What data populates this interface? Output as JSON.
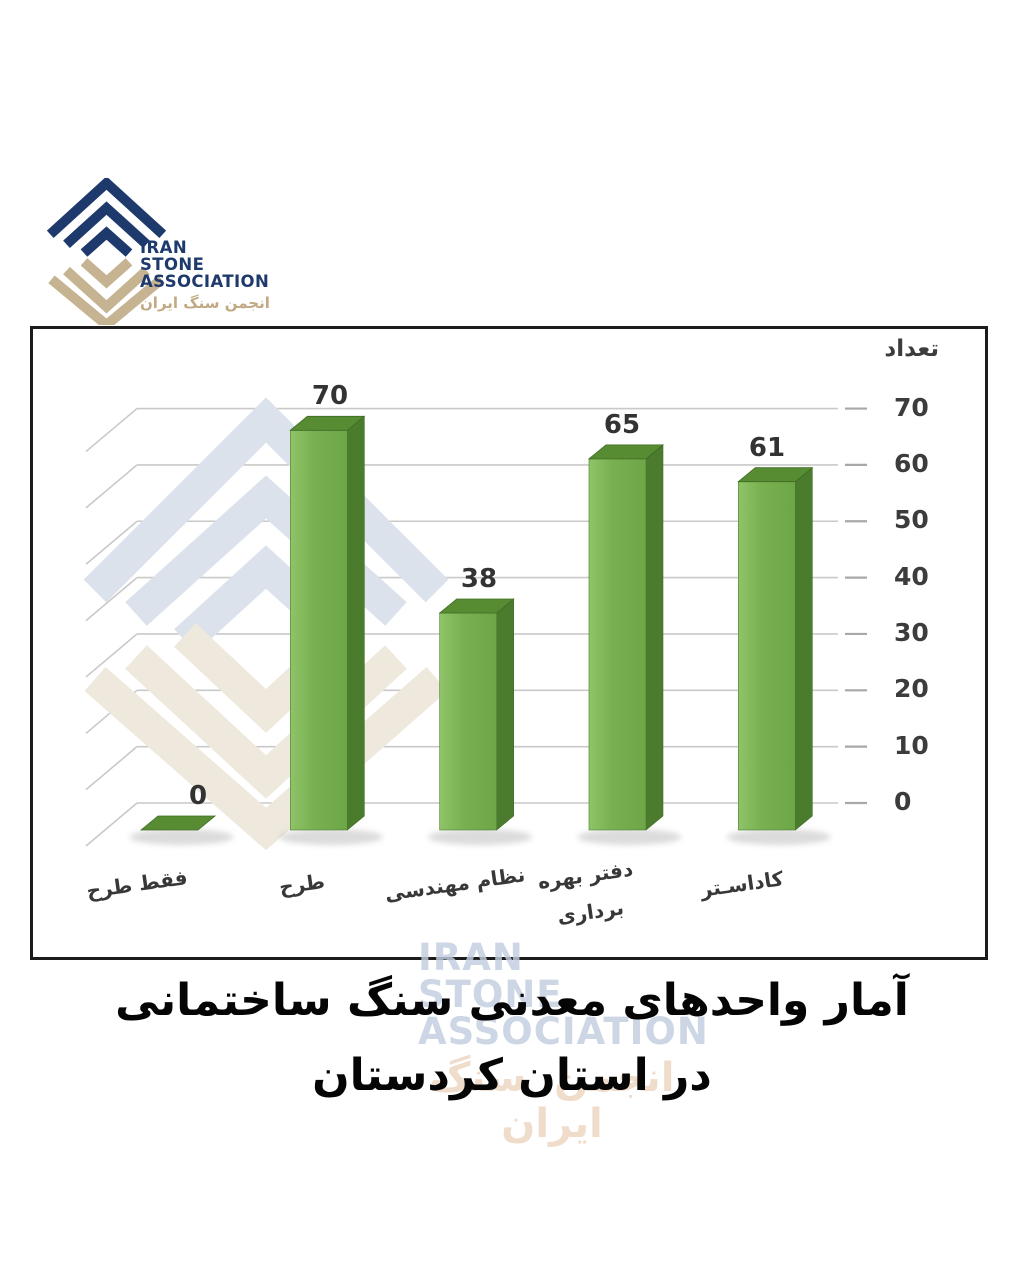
{
  "logo": {
    "line1": "IRAN",
    "line2": "STONE",
    "line3": "ASSOCIATION",
    "persian": "انجمن سنگ ایران",
    "navy": "#1e3a6d",
    "tan": "#c6b391"
  },
  "watermark": {
    "line1": "IRAN",
    "line2": "STONE",
    "line3": "ASSOCIATION",
    "persian": "انجمن سنگ ایران"
  },
  "chart_data": {
    "type": "bar",
    "title": "آمار واحدهای معدنی سنگ ساختمانی در استان کردستان",
    "ylabel": "تعداد",
    "xlabel": "",
    "categories": [
      "فقط طرح",
      "طرح",
      "نظام مهندسی",
      "دفتر بهره\nبرداری",
      "کاداسـتر"
    ],
    "values": [
      0,
      70,
      38,
      65,
      61
    ],
    "y_ticks": [
      0,
      10,
      20,
      30,
      40,
      50,
      60,
      70
    ],
    "ylim": [
      0,
      70
    ],
    "grid": true,
    "legend": false,
    "colors": {
      "bar_front": "#76ad4e",
      "bar_front_light": "#8fc468",
      "bar_side": "#4b7b2d",
      "bar_top": "#578c33",
      "gridline": "#c9c9c9",
      "tick_dash": "#a8a8a8"
    }
  },
  "caption": {
    "line1": "آمار واحدهای معدنی سنگ ساختمانی",
    "line2": "در استان کردستان"
  }
}
